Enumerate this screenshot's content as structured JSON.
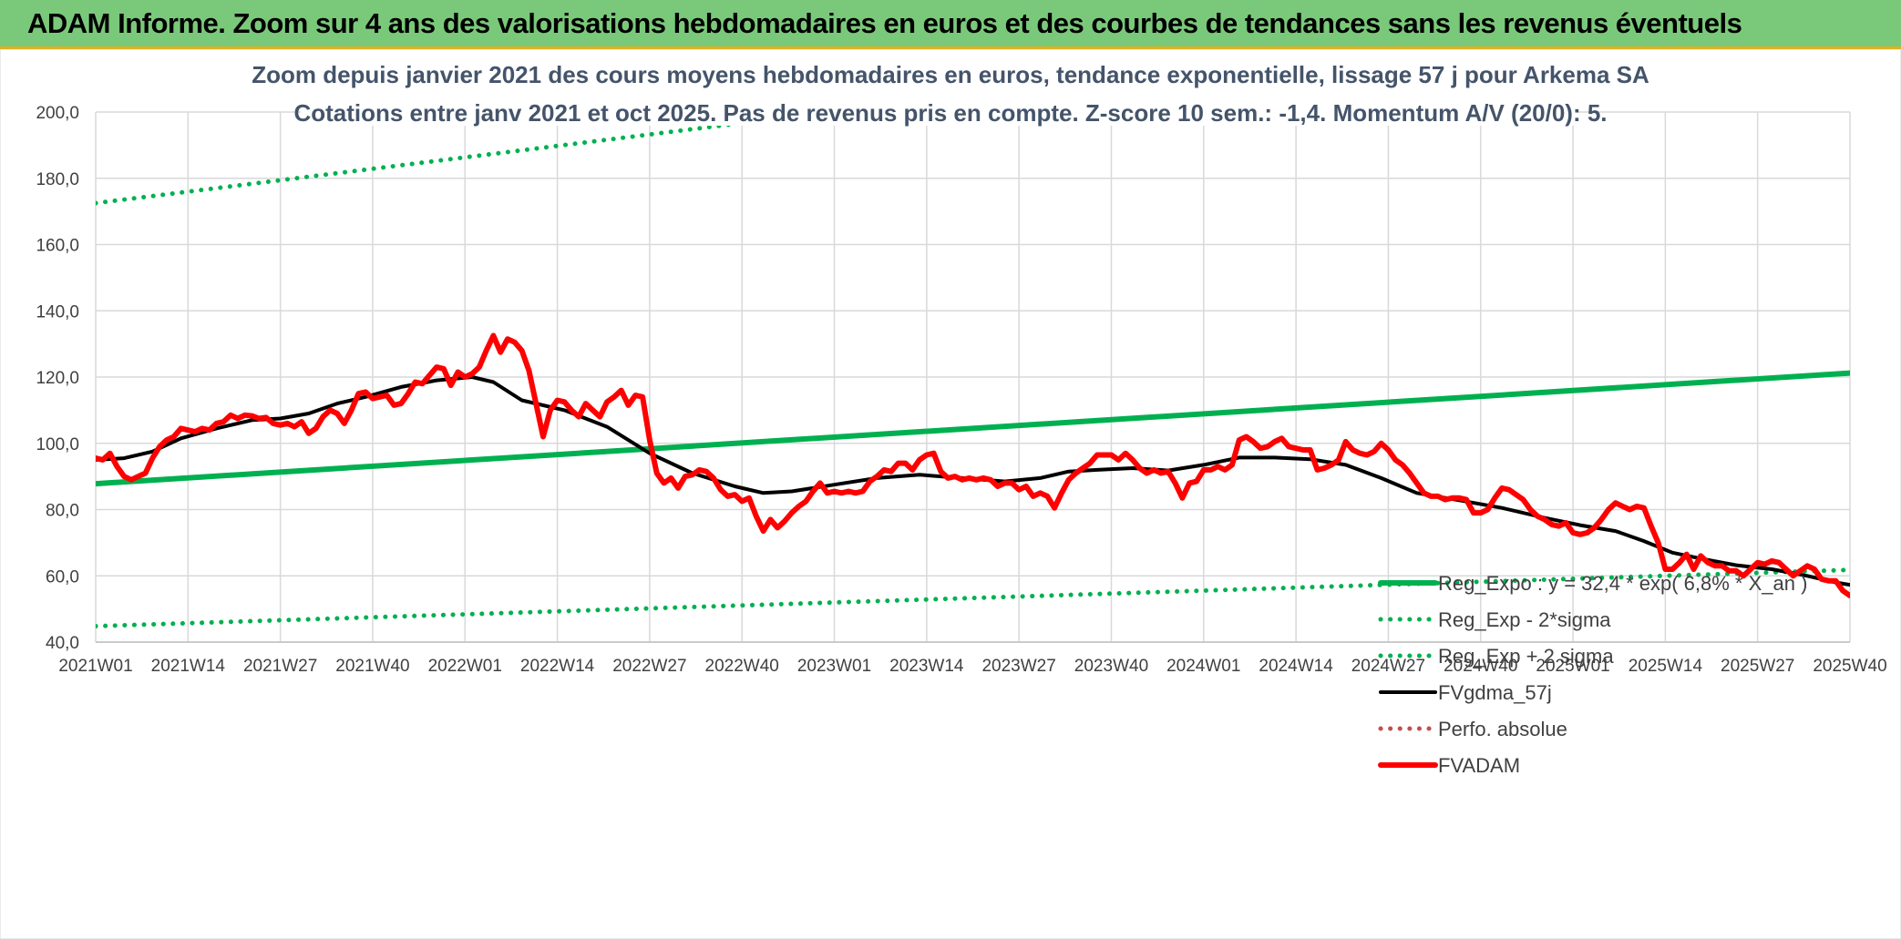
{
  "header": {
    "title": "ADAM Informe. Zoom sur 4 ans des valorisations hebdomadaires en euros et des courbes de tendances sans les revenus éventuels"
  },
  "colors": {
    "header_bg": "#7ac97a",
    "trend": "#00b050",
    "fvgdma": "#000000",
    "fvadam": "#ff0000",
    "perfo": "#c0504d"
  },
  "chart_data": {
    "type": "line",
    "title": "Zoom depuis janvier 2021 des cours moyens hebdomadaires en euros, tendance exponentielle, lissage 57 j pour Arkema SA",
    "subtitle": "Cotations entre janv 2021 et oct 2025. Pas de revenus pris en compte. Z-score 10 sem.: -1,4. Momentum A/V (20/0): 5.",
    "xlabel": "",
    "ylabel": "",
    "ylim": [
      40,
      200
    ],
    "yticks": [
      "40,0",
      "60,0",
      "80,0",
      "100,0",
      "120,0",
      "140,0",
      "160,0",
      "180,0",
      "200,0"
    ],
    "x_tick_labels": [
      "2021W01",
      "2021W14",
      "2021W27",
      "2021W40",
      "2022W01",
      "2022W14",
      "2022W27",
      "2022W40",
      "2023W01",
      "2023W14",
      "2023W27",
      "2023W40",
      "2024W01",
      "2024W14",
      "2024W27",
      "2024W40",
      "2025W01",
      "2025W14",
      "2025W27",
      "2025W40"
    ],
    "week_range": [
      0,
      247
    ],
    "grid": true,
    "legend_position": "right",
    "series": [
      {
        "name": "Reg_Expo : y = 32,4 * exp( 6,8% *  X_an )",
        "style": "solid",
        "color": "#00b050",
        "points": [
          [
            0,
            87.8
          ],
          [
            247,
            121.2
          ]
        ]
      },
      {
        "name": "Reg_Exp - 2*sigma",
        "style": "dotted",
        "color": "#00b050",
        "points": [
          [
            0,
            44.8
          ],
          [
            247,
            61.8
          ]
        ]
      },
      {
        "name": "Reg_Exp + 2 sigma",
        "style": "dotted",
        "color": "#00b050",
        "points": [
          [
            0,
            172.5
          ],
          [
            247,
            238.1
          ]
        ]
      },
      {
        "name": "FVgdma_57j",
        "style": "solid",
        "color": "#000000",
        "points": [
          [
            0,
            95
          ],
          [
            4,
            95.5
          ],
          [
            8,
            97.5
          ],
          [
            12,
            101.5
          ],
          [
            17,
            104.5
          ],
          [
            22,
            107
          ],
          [
            26,
            107.5
          ],
          [
            30,
            109
          ],
          [
            34,
            112
          ],
          [
            38,
            114
          ],
          [
            43,
            117
          ],
          [
            48,
            119
          ],
          [
            53,
            120
          ],
          [
            56,
            118.5
          ],
          [
            60,
            113
          ],
          [
            66,
            110
          ],
          [
            72,
            105
          ],
          [
            78,
            97
          ],
          [
            84,
            91
          ],
          [
            90,
            87
          ],
          [
            94,
            85
          ],
          [
            98,
            85.5
          ],
          [
            104,
            87.5
          ],
          [
            110,
            89.5
          ],
          [
            116,
            90.5
          ],
          [
            122,
            89.5
          ],
          [
            128,
            88.5
          ],
          [
            133,
            89.5
          ],
          [
            137,
            91.5
          ],
          [
            141,
            92
          ],
          [
            146,
            92.5
          ],
          [
            151,
            91.8
          ],
          [
            156,
            93.5
          ],
          [
            161,
            95.7
          ],
          [
            166,
            95.7
          ],
          [
            171,
            95.2
          ],
          [
            176,
            93.5
          ],
          [
            181,
            89.5
          ],
          [
            186,
            85
          ],
          [
            192,
            82.8
          ],
          [
            198,
            80.5
          ],
          [
            204,
            77.5
          ],
          [
            209,
            75.3
          ],
          [
            214,
            73.5
          ],
          [
            218,
            70.5
          ],
          [
            222,
            67
          ],
          [
            226,
            65.2
          ],
          [
            231,
            63.2
          ],
          [
            236,
            62
          ],
          [
            241,
            60
          ],
          [
            245,
            58
          ],
          [
            247,
            57.3
          ]
        ]
      },
      {
        "name": "Perfo. absolue",
        "style": "dotted",
        "color": "#c0504d",
        "points": []
      },
      {
        "name": "FVADAM",
        "style": "solid",
        "color": "#ff0000",
        "points": [
          [
            0,
            95.5
          ],
          [
            1,
            95
          ],
          [
            2,
            97
          ],
          [
            3,
            93
          ],
          [
            4,
            90
          ],
          [
            5,
            89
          ],
          [
            6,
            90
          ],
          [
            7,
            91
          ],
          [
            8,
            95.5
          ],
          [
            9,
            99
          ],
          [
            10,
            101
          ],
          [
            11,
            102
          ],
          [
            12,
            104.5
          ],
          [
            13,
            104
          ],
          [
            14,
            103.5
          ],
          [
            15,
            104.5
          ],
          [
            16,
            104
          ],
          [
            17,
            106
          ],
          [
            18,
            106.5
          ],
          [
            19,
            108.5
          ],
          [
            20,
            107.5
          ],
          [
            21,
            108.5
          ],
          [
            22,
            108.3
          ],
          [
            23,
            107.5
          ],
          [
            24,
            107.8
          ],
          [
            25,
            106
          ],
          [
            26,
            105.5
          ],
          [
            27,
            106
          ],
          [
            28,
            105
          ],
          [
            29,
            106.5
          ],
          [
            30,
            103
          ],
          [
            31,
            104.5
          ],
          [
            32,
            108
          ],
          [
            33,
            110
          ],
          [
            34,
            109
          ],
          [
            35,
            106
          ],
          [
            36,
            110
          ],
          [
            37,
            115
          ],
          [
            38,
            115.5
          ],
          [
            39,
            113.5
          ],
          [
            40,
            114
          ],
          [
            41,
            114.5
          ],
          [
            42,
            111.5
          ],
          [
            43,
            112
          ],
          [
            44,
            115
          ],
          [
            45,
            118.5
          ],
          [
            46,
            118
          ],
          [
            47,
            120.5
          ],
          [
            48,
            123
          ],
          [
            49,
            122.5
          ],
          [
            50,
            117.5
          ],
          [
            51,
            121.5
          ],
          [
            52,
            120
          ],
          [
            53,
            121
          ],
          [
            54,
            123
          ],
          [
            55,
            128
          ],
          [
            56,
            132.5
          ],
          [
            57,
            127.5
          ],
          [
            58,
            131.5
          ],
          [
            59,
            130.5
          ],
          [
            60,
            128
          ],
          [
            61,
            122
          ],
          [
            62,
            112
          ],
          [
            63,
            102
          ],
          [
            64,
            110
          ],
          [
            65,
            113
          ],
          [
            66,
            112.5
          ],
          [
            67,
            110
          ],
          [
            68,
            108
          ],
          [
            69,
            112
          ],
          [
            70,
            110
          ],
          [
            71,
            108
          ],
          [
            72,
            112.5
          ],
          [
            73,
            114
          ],
          [
            74,
            116
          ],
          [
            75,
            111.5
          ],
          [
            76,
            114.5
          ],
          [
            77,
            114
          ],
          [
            78,
            101
          ],
          [
            79,
            91
          ],
          [
            80,
            88
          ],
          [
            81,
            89.5
          ],
          [
            82,
            86.5
          ],
          [
            83,
            90
          ],
          [
            84,
            90.5
          ],
          [
            85,
            92
          ],
          [
            86,
            91.5
          ],
          [
            87,
            89.5
          ],
          [
            88,
            86
          ],
          [
            89,
            84
          ],
          [
            90,
            84.5
          ],
          [
            91,
            82.5
          ],
          [
            92,
            83.5
          ],
          [
            93,
            78
          ],
          [
            94,
            73.5
          ],
          [
            95,
            77
          ],
          [
            96,
            74.5
          ],
          [
            97,
            76.5
          ],
          [
            98,
            79
          ],
          [
            99,
            81
          ],
          [
            100,
            82.5
          ],
          [
            101,
            85.5
          ],
          [
            102,
            88
          ],
          [
            103,
            85
          ],
          [
            104,
            85.5
          ],
          [
            105,
            85
          ],
          [
            106,
            85.5
          ],
          [
            107,
            85
          ],
          [
            108,
            85.5
          ],
          [
            109,
            88.5
          ],
          [
            110,
            90
          ],
          [
            111,
            92
          ],
          [
            112,
            91.5
          ],
          [
            113,
            94
          ],
          [
            114,
            94
          ],
          [
            115,
            92
          ],
          [
            116,
            95
          ],
          [
            117,
            96.5
          ],
          [
            118,
            97
          ],
          [
            119,
            91.5
          ],
          [
            120,
            89.5
          ],
          [
            121,
            90
          ],
          [
            122,
            89
          ],
          [
            123,
            89.5
          ],
          [
            124,
            89
          ],
          [
            125,
            89.5
          ],
          [
            126,
            89
          ],
          [
            127,
            87
          ],
          [
            128,
            88
          ],
          [
            129,
            88
          ],
          [
            130,
            86
          ],
          [
            131,
            87
          ],
          [
            132,
            84
          ],
          [
            133,
            85
          ],
          [
            134,
            84
          ],
          [
            135,
            80.5
          ],
          [
            136,
            85
          ],
          [
            137,
            89
          ],
          [
            138,
            91
          ],
          [
            139,
            92.5
          ],
          [
            140,
            94
          ],
          [
            141,
            96.5
          ],
          [
            142,
            96.5
          ],
          [
            143,
            96.5
          ],
          [
            144,
            95
          ],
          [
            145,
            97
          ],
          [
            146,
            95
          ],
          [
            147,
            92.5
          ],
          [
            148,
            91
          ],
          [
            149,
            92
          ],
          [
            150,
            91
          ],
          [
            151,
            91.5
          ],
          [
            152,
            88
          ],
          [
            153,
            83.5
          ],
          [
            154,
            88
          ],
          [
            155,
            88.5
          ],
          [
            156,
            92
          ],
          [
            157,
            92
          ],
          [
            158,
            93
          ],
          [
            159,
            92
          ],
          [
            160,
            93.5
          ],
          [
            161,
            101
          ],
          [
            162,
            102
          ],
          [
            163,
            100.5
          ],
          [
            164,
            98.5
          ],
          [
            165,
            99
          ],
          [
            166,
            100.5
          ],
          [
            167,
            101.5
          ],
          [
            168,
            99
          ],
          [
            169,
            98.5
          ],
          [
            170,
            98
          ],
          [
            171,
            98
          ],
          [
            172,
            92
          ],
          [
            173,
            92.5
          ],
          [
            174,
            93.5
          ],
          [
            175,
            95
          ],
          [
            176,
            100.5
          ],
          [
            177,
            98
          ],
          [
            178,
            97
          ],
          [
            179,
            96.5
          ],
          [
            180,
            97.5
          ],
          [
            181,
            100
          ],
          [
            182,
            98
          ],
          [
            183,
            95
          ],
          [
            184,
            93.5
          ],
          [
            185,
            91
          ],
          [
            186,
            88
          ],
          [
            187,
            85
          ],
          [
            188,
            84
          ],
          [
            189,
            84
          ],
          [
            190,
            83
          ],
          [
            191,
            83.5
          ],
          [
            192,
            83.5
          ],
          [
            193,
            83
          ],
          [
            194,
            79
          ],
          [
            195,
            79
          ],
          [
            196,
            80
          ],
          [
            197,
            83.5
          ],
          [
            198,
            86.5
          ],
          [
            199,
            86
          ],
          [
            200,
            84.5
          ],
          [
            201,
            83
          ],
          [
            202,
            80
          ],
          [
            203,
            78
          ],
          [
            204,
            77
          ],
          [
            205,
            75.5
          ],
          [
            206,
            75
          ],
          [
            207,
            76
          ],
          [
            208,
            73
          ],
          [
            209,
            72.5
          ],
          [
            210,
            73
          ],
          [
            211,
            74.5
          ],
          [
            212,
            77
          ],
          [
            213,
            80
          ],
          [
            214,
            82
          ],
          [
            215,
            81
          ],
          [
            216,
            80
          ],
          [
            217,
            81
          ],
          [
            218,
            80.5
          ],
          [
            219,
            75
          ],
          [
            220,
            70
          ],
          [
            221,
            62
          ],
          [
            222,
            62
          ],
          [
            223,
            64
          ],
          [
            224,
            66.5
          ],
          [
            225,
            62
          ],
          [
            226,
            66
          ],
          [
            227,
            64
          ],
          [
            228,
            63
          ],
          [
            229,
            63
          ],
          [
            230,
            61.5
          ],
          [
            231,
            61.5
          ],
          [
            232,
            60
          ],
          [
            233,
            62
          ],
          [
            234,
            64
          ],
          [
            235,
            63.5
          ],
          [
            236,
            64.5
          ],
          [
            237,
            64
          ],
          [
            238,
            62
          ],
          [
            239,
            60
          ],
          [
            240,
            61.5
          ],
          [
            241,
            63
          ],
          [
            242,
            62
          ],
          [
            243,
            59
          ],
          [
            244,
            58.5
          ],
          [
            245,
            58.5
          ],
          [
            246,
            55.5
          ],
          [
            247,
            54
          ]
        ]
      }
    ]
  }
}
